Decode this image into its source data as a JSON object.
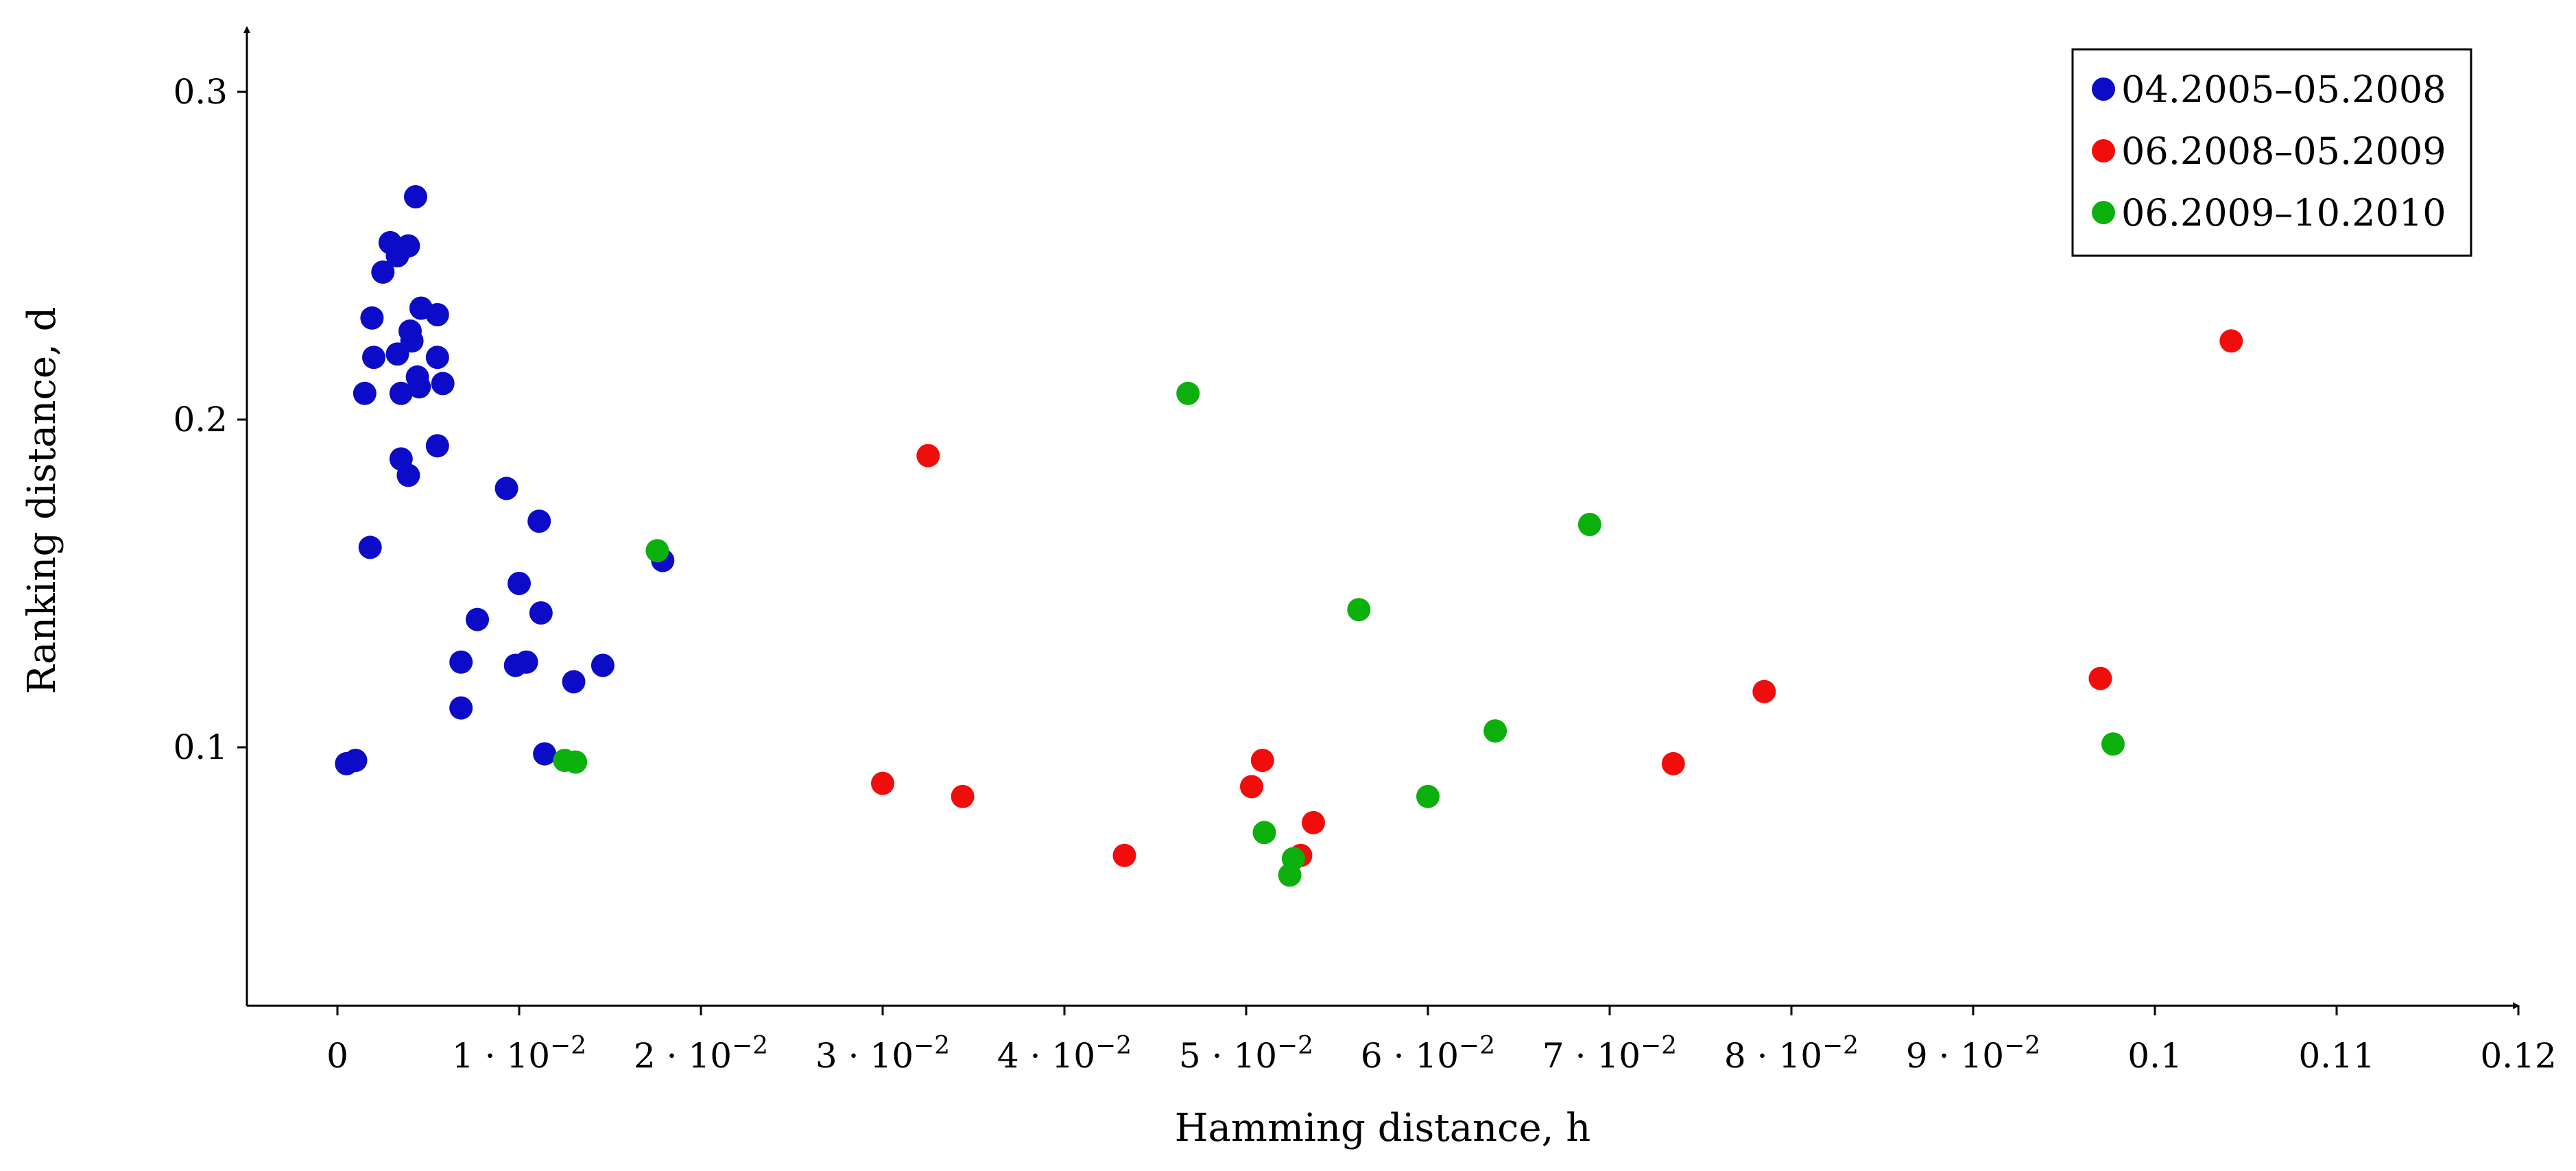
{
  "chart_data": {
    "type": "scatter",
    "xlabel": "Hamming distance, h",
    "ylabel": "Ranking distance, d",
    "xlim": [
      -0.005,
      0.12
    ],
    "ylim": [
      0.02,
      0.32
    ],
    "x_ticks": [
      {
        "value": 0,
        "label": "0"
      },
      {
        "value": 0.01,
        "label": "1 · 10⁻²"
      },
      {
        "value": 0.02,
        "label": "2 · 10⁻²"
      },
      {
        "value": 0.03,
        "label": "3 · 10⁻²"
      },
      {
        "value": 0.04,
        "label": "4 · 10⁻²"
      },
      {
        "value": 0.05,
        "label": "5 · 10⁻²"
      },
      {
        "value": 0.06,
        "label": "6 · 10⁻²"
      },
      {
        "value": 0.07,
        "label": "7 · 10⁻²"
      },
      {
        "value": 0.08,
        "label": "8 · 10⁻²"
      },
      {
        "value": 0.09,
        "label": "9 · 10⁻²"
      },
      {
        "value": 0.1,
        "label": "0.1"
      },
      {
        "value": 0.11,
        "label": "0.11"
      },
      {
        "value": 0.12,
        "label": "0.12"
      }
    ],
    "y_ticks": [
      {
        "value": 0.1,
        "label": "0.1"
      },
      {
        "value": 0.2,
        "label": "0.2"
      },
      {
        "value": 0.3,
        "label": "0.3"
      }
    ],
    "grid": false,
    "legend_position": "top-right",
    "series": [
      {
        "name": "04.2005–05.2008",
        "color": "#0b0bc8",
        "points": [
          [
            0.0005,
            0.095
          ],
          [
            0.001,
            0.096
          ],
          [
            0.0015,
            0.208
          ],
          [
            0.0018,
            0.161
          ],
          [
            0.0019,
            0.231
          ],
          [
            0.002,
            0.219
          ],
          [
            0.0025,
            0.245
          ],
          [
            0.0029,
            0.254
          ],
          [
            0.0033,
            0.25
          ],
          [
            0.0033,
            0.22
          ],
          [
            0.0035,
            0.208
          ],
          [
            0.0035,
            0.188
          ],
          [
            0.0039,
            0.253
          ],
          [
            0.0039,
            0.183
          ],
          [
            0.004,
            0.227
          ],
          [
            0.0041,
            0.224
          ],
          [
            0.0043,
            0.268
          ],
          [
            0.0044,
            0.213
          ],
          [
            0.0045,
            0.21
          ],
          [
            0.0046,
            0.234
          ],
          [
            0.0055,
            0.232
          ],
          [
            0.0055,
            0.219
          ],
          [
            0.0055,
            0.192
          ],
          [
            0.0058,
            0.211
          ],
          [
            0.0068,
            0.126
          ],
          [
            0.0068,
            0.112
          ],
          [
            0.0077,
            0.139
          ],
          [
            0.0093,
            0.179
          ],
          [
            0.0098,
            0.125
          ],
          [
            0.01,
            0.15
          ],
          [
            0.0104,
            0.126
          ],
          [
            0.0111,
            0.169
          ],
          [
            0.0112,
            0.141
          ],
          [
            0.0114,
            0.098
          ],
          [
            0.013,
            0.12
          ],
          [
            0.0146,
            0.125
          ],
          [
            0.0179,
            0.157
          ]
        ]
      },
      {
        "name": "06.2008–05.2009",
        "color": "#f20d0d",
        "points": [
          [
            0.03,
            0.089
          ],
          [
            0.0325,
            0.189
          ],
          [
            0.0344,
            0.085
          ],
          [
            0.0433,
            0.067
          ],
          [
            0.0503,
            0.088
          ],
          [
            0.0509,
            0.096
          ],
          [
            0.053,
            0.067
          ],
          [
            0.0537,
            0.077
          ],
          [
            0.0735,
            0.095
          ],
          [
            0.0785,
            0.117
          ],
          [
            0.097,
            0.121
          ],
          [
            0.1042,
            0.224
          ]
        ]
      },
      {
        "name": "06.2009–10.2010",
        "color": "#0cb00c",
        "points": [
          [
            0.0125,
            0.096
          ],
          [
            0.0131,
            0.0955
          ],
          [
            0.0176,
            0.16
          ],
          [
            0.0468,
            0.208
          ],
          [
            0.051,
            0.074
          ],
          [
            0.0524,
            0.061
          ],
          [
            0.0526,
            0.066
          ],
          [
            0.0562,
            0.142
          ],
          [
            0.06,
            0.085
          ],
          [
            0.0637,
            0.105
          ],
          [
            0.0689,
            0.168
          ],
          [
            0.0977,
            0.101
          ]
        ]
      }
    ]
  }
}
